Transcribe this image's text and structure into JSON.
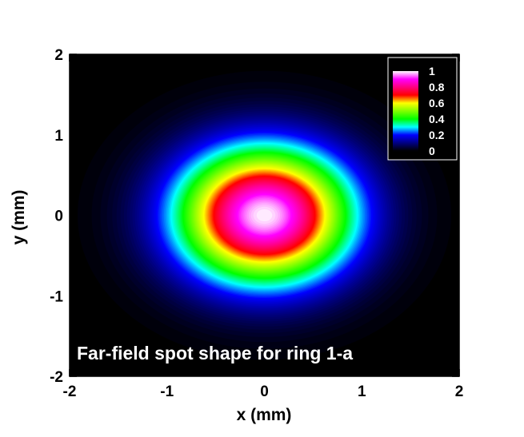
{
  "chart_data": {
    "type": "heatmap",
    "title": "",
    "annotation": "Far-field spot shape for ring 1-a",
    "xlabel": "x (mm)",
    "ylabel": "y (mm)",
    "xlim": [
      -2,
      2
    ],
    "ylim": [
      -2,
      2
    ],
    "xticks": [
      -2,
      -1,
      0,
      1,
      2
    ],
    "yticks": [
      -2,
      -1,
      0,
      1,
      2
    ],
    "xtick_labels": [
      "-2",
      "-1",
      "0",
      "1",
      "2"
    ],
    "ytick_labels": [
      "-2",
      "-1",
      "0",
      "1",
      "2"
    ],
    "colorbar": {
      "position": "top-right",
      "ticks": [
        1,
        0.8,
        0.6,
        0.4,
        0.2,
        0
      ],
      "tick_labels": [
        "1",
        "0.8",
        "0.6",
        "0.4",
        "0.2",
        "0"
      ],
      "stops": [
        {
          "value": 0.0,
          "color": "#000000"
        },
        {
          "value": 0.1,
          "color": "#000080"
        },
        {
          "value": 0.2,
          "color": "#0000ff"
        },
        {
          "value": 0.3,
          "color": "#00ffff"
        },
        {
          "value": 0.4,
          "color": "#00ff00"
        },
        {
          "value": 0.5,
          "color": "#80ff00"
        },
        {
          "value": 0.6,
          "color": "#ffff00"
        },
        {
          "value": 0.7,
          "color": "#ff0000"
        },
        {
          "value": 0.8,
          "color": "#ff0080"
        },
        {
          "value": 0.9,
          "color": "#ff00ff"
        },
        {
          "value": 1.0,
          "color": "#ffffff"
        }
      ]
    },
    "field": {
      "model": "gaussian",
      "center": [
        0,
        0
      ],
      "sigma_x": 0.62,
      "sigma_y": 0.58,
      "peak": 1.0
    },
    "grid": false
  }
}
